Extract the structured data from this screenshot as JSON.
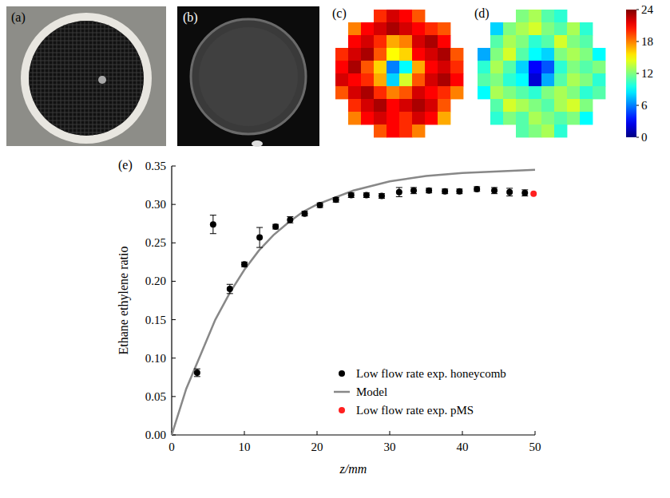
{
  "images": [
    {
      "label": "(a)"
    },
    {
      "label": "(b)"
    }
  ],
  "chart_data": [
    {
      "type": "heatmap",
      "clim": [
        0,
        24
      ],
      "cticks": [
        0,
        6,
        12,
        18,
        24
      ],
      "panels": [
        {
          "title": "(c)",
          "cells": [
            [
              null,
              null,
              null,
              20,
              22,
              21,
              19,
              null,
              null,
              null
            ],
            [
              null,
              18,
              21,
              22,
              23,
              22,
              21,
              20,
              19,
              null
            ],
            [
              null,
              21,
              22,
              20,
              17,
              18,
              22,
              23,
              21,
              null
            ],
            [
              20,
              22,
              23,
              19,
              15,
              16,
              21,
              22,
              23,
              19
            ],
            [
              21,
              23,
              19,
              16,
              6,
              9,
              17,
              21,
              22,
              20
            ],
            [
              22,
              21,
              20,
              17,
              8,
              14,
              19,
              22,
              23,
              21
            ],
            [
              19,
              22,
              23,
              20,
              18,
              19,
              22,
              21,
              20,
              18
            ],
            [
              null,
              20,
              22,
              23,
              21,
              22,
              23,
              22,
              19,
              null
            ],
            [
              null,
              18,
              21,
              22,
              21,
              20,
              22,
              21,
              17,
              null
            ],
            [
              null,
              null,
              null,
              19,
              21,
              20,
              18,
              null,
              null,
              null
            ]
          ]
        },
        {
          "title": "(d)",
          "cells": [
            [
              null,
              null,
              null,
              12,
              13,
              11,
              10,
              null,
              null,
              null
            ],
            [
              null,
              8,
              12,
              13,
              14,
              12,
              11,
              13,
              10,
              null
            ],
            [
              null,
              11,
              13,
              12,
              10,
              11,
              14,
              12,
              11,
              null
            ],
            [
              7,
              12,
              14,
              11,
              9,
              8,
              12,
              13,
              12,
              9
            ],
            [
              10,
              13,
              11,
              8,
              3,
              5,
              10,
              12,
              11,
              12
            ],
            [
              11,
              12,
              10,
              9,
              2,
              7,
              11,
              13,
              12,
              10
            ],
            [
              9,
              13,
              12,
              11,
              10,
              12,
              13,
              12,
              10,
              11
            ],
            [
              null,
              11,
              14,
              13,
              12,
              11,
              13,
              14,
              12,
              null
            ],
            [
              null,
              10,
              12,
              11,
              13,
              12,
              11,
              12,
              9,
              null
            ],
            [
              null,
              null,
              null,
              11,
              12,
              13,
              10,
              null,
              null,
              null
            ]
          ]
        }
      ]
    },
    {
      "type": "scatter",
      "title": "(e)",
      "x_label": "z/mm",
      "y_label": "Ethane ethylene ratio",
      "xlim": [
        0,
        50
      ],
      "xticks": [
        0,
        10,
        20,
        30,
        40,
        50
      ],
      "ylim": [
        0,
        0.35
      ],
      "yticks": [
        {
          "value": 0,
          "label": "0.00"
        },
        {
          "value": 0.05,
          "label": "0.05"
        },
        {
          "value": 0.1,
          "label": "0.10"
        },
        {
          "value": 0.15,
          "label": "0.15"
        },
        {
          "value": 0.2,
          "label": "0.20"
        },
        {
          "value": 0.25,
          "label": "0.25"
        },
        {
          "value": 0.3,
          "label": "0.30"
        },
        {
          "value": 0.35,
          "label": "0.35"
        }
      ],
      "legend": "lower right",
      "series": [
        {
          "name": "Low flow rate exp. honeycomb",
          "type": "scatter",
          "color": "#000000",
          "marker": "circle",
          "x": [
            3.5,
            5.7,
            8,
            10,
            12.1,
            14.3,
            16.3,
            18.3,
            20.4,
            22.6,
            24.7,
            26.8,
            28.9,
            31.3,
            33.3,
            35.4,
            37.6,
            39.6,
            42,
            44.4,
            46.5,
            48.6
          ],
          "values": [
            0.081,
            0.274,
            0.19,
            0.222,
            0.257,
            0.271,
            0.28,
            0.288,
            0.299,
            0.306,
            0.312,
            0.312,
            0.311,
            0.316,
            0.318,
            0.318,
            0.317,
            0.317,
            0.32,
            0.318,
            0.316,
            0.315
          ],
          "errors": [
            0.005,
            0.012,
            0.006,
            0.003,
            0.013,
            0.003,
            0.004,
            0.003,
            0.003,
            0.003,
            0.003,
            0.003,
            0.003,
            0.006,
            0.004,
            0.003,
            0.003,
            0.003,
            0.003,
            0.004,
            0.005,
            0.004
          ]
        },
        {
          "name": "Model",
          "type": "line",
          "color": "#888888",
          "line_style": "solid",
          "x": [
            0,
            2,
            4,
            6,
            8,
            10,
            12,
            14,
            16,
            18,
            20,
            25,
            30,
            35,
            40,
            45,
            50
          ],
          "values": [
            0,
            0.06,
            0.105,
            0.15,
            0.185,
            0.215,
            0.24,
            0.26,
            0.276,
            0.29,
            0.3,
            0.318,
            0.33,
            0.337,
            0.341,
            0.343,
            0.345
          ]
        },
        {
          "name": "Low flow rate exp. pMS",
          "type": "scatter",
          "color": "#ff2020",
          "marker": "circle",
          "x": [
            49.8
          ],
          "values": [
            0.314
          ]
        }
      ]
    }
  ]
}
